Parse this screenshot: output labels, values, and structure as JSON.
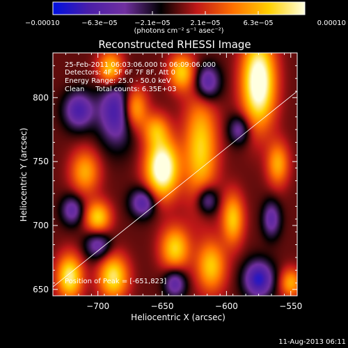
{
  "chart_data": {
    "type": "heatmap",
    "title": "Reconstructed RHESSI Image",
    "xlabel": "Heliocentric X (arcsec)",
    "ylabel": "Heliocentric Y (arcsec)",
    "xlim": [
      -735,
      -545
    ],
    "ylim": [
      645,
      835
    ],
    "x_ticks": [
      {
        "value": -700,
        "label": "−700"
      },
      {
        "value": -650,
        "label": "−650"
      },
      {
        "value": -600,
        "label": "−600"
      },
      {
        "value": -550,
        "label": "−550"
      }
    ],
    "y_ticks": [
      {
        "value": 650,
        "label": "650"
      },
      {
        "value": 700,
        "label": "700"
      },
      {
        "value": 750,
        "label": "750"
      },
      {
        "value": 800,
        "label": "800"
      }
    ],
    "grid": false,
    "annotations": [
      "25-Feb-2011 06:03:06.000 to 06:09:06.000",
      "Detectors: 4F 5F 6F 7F 8F, Att 0",
      "Energy Range: 25.0 - 50.0 keV",
      "Clean     Total counts: 6.35E+03"
    ],
    "peak_label": "Position of Peak = [-651,823]",
    "limb_line": [
      [
        -735,
        652
      ],
      [
        -545,
        805
      ]
    ],
    "colorbar": {
      "min": -0.0001,
      "max": 0.0001,
      "tick_labels": [
        "−0.00010",
        "−6.3e−05",
        "−2.1e−05",
        "2.1e−05",
        "6.3e−05",
        "0.00010"
      ],
      "tick_values": [
        -0.0001,
        -6.3e-05,
        -2.1e-05,
        2.1e-05,
        6.3e-05,
        0.0001
      ],
      "unit_label": "(photons cm⁻² s⁻¹ asec⁻²)"
    },
    "colors": [
      "#0010e0",
      "#4a1ea8",
      "#7030a0",
      "#000000",
      "#c01818",
      "#ff7000",
      "#ffd000",
      "#ffffe0"
    ],
    "sources": [
      {
        "x": -650,
        "y": 745,
        "sx": 9,
        "sy": 16,
        "v": 1.2
      },
      {
        "x": -575,
        "y": 812,
        "sx": 9,
        "sy": 24,
        "v": 1.2
      },
      {
        "x": -620,
        "y": 760,
        "sx": 9,
        "sy": 30,
        "v": 0.75
      },
      {
        "x": -672,
        "y": 792,
        "sx": 7,
        "sy": 12,
        "v": 0.8
      },
      {
        "x": -690,
        "y": 822,
        "sx": 7,
        "sy": 10,
        "v": 0.8
      },
      {
        "x": -710,
        "y": 742,
        "sx": 8,
        "sy": 12,
        "v": 0.6
      },
      {
        "x": -700,
        "y": 706,
        "sx": 7,
        "sy": 9,
        "v": 0.75
      },
      {
        "x": -722,
        "y": 660,
        "sx": 7,
        "sy": 12,
        "v": 0.9
      },
      {
        "x": -688,
        "y": 660,
        "sx": 8,
        "sy": 12,
        "v": 0.85
      },
      {
        "x": -640,
        "y": 682,
        "sx": 8,
        "sy": 12,
        "v": 0.75
      },
      {
        "x": -612,
        "y": 668,
        "sx": 8,
        "sy": 14,
        "v": 0.7
      },
      {
        "x": -595,
        "y": 705,
        "sx": 6,
        "sy": 14,
        "v": 0.7
      },
      {
        "x": -560,
        "y": 748,
        "sx": 6,
        "sy": 12,
        "v": 0.6
      },
      {
        "x": -550,
        "y": 655,
        "sx": 6,
        "sy": 8,
        "v": 0.6
      },
      {
        "x": -635,
        "y": 820,
        "sx": 7,
        "sy": 10,
        "v": 0.7
      },
      {
        "x": -655,
        "y": 775,
        "sx": 7,
        "sy": 9,
        "v": 0.5
      },
      {
        "x": -685,
        "y": 790,
        "sx": 10,
        "sy": 18,
        "v": -0.8
      },
      {
        "x": -715,
        "y": 790,
        "sx": 8,
        "sy": 10,
        "v": -0.7
      },
      {
        "x": -665,
        "y": 718,
        "sx": 7,
        "sy": 8,
        "v": -0.65
      },
      {
        "x": -615,
        "y": 812,
        "sx": 7,
        "sy": 10,
        "v": -0.7
      },
      {
        "x": -575,
        "y": 658,
        "sx": 8,
        "sy": 10,
        "v": -0.85
      },
      {
        "x": -615,
        "y": 720,
        "sx": 6,
        "sy": 8,
        "v": -0.6
      },
      {
        "x": -640,
        "y": 655,
        "sx": 6,
        "sy": 8,
        "v": -0.6
      },
      {
        "x": -700,
        "y": 685,
        "sx": 7,
        "sy": 8,
        "v": -0.55
      },
      {
        "x": -565,
        "y": 705,
        "sx": 5,
        "sy": 10,
        "v": -0.55
      },
      {
        "x": -720,
        "y": 712,
        "sx": 6,
        "sy": 8,
        "v": -0.55
      },
      {
        "x": -590,
        "y": 775,
        "sx": 6,
        "sy": 8,
        "v": -0.5
      }
    ]
  },
  "footer": {
    "timestamp": "11-Aug-2013 06:11"
  }
}
